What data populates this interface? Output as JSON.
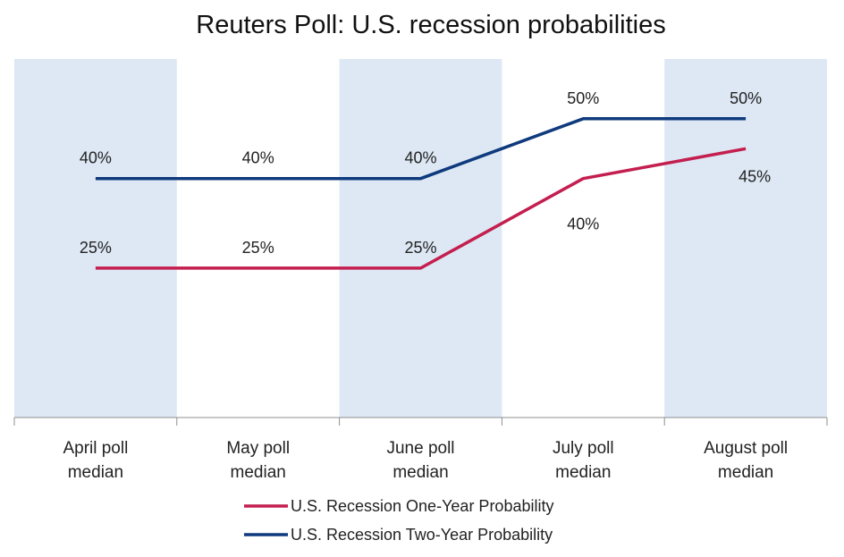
{
  "chart_data": {
    "type": "line",
    "title": "Reuters Poll: U.S. recession probabilities",
    "xlabel": "",
    "ylabel": "",
    "categories": [
      [
        "April poll",
        "median"
      ],
      [
        "May poll",
        "median"
      ],
      [
        "June poll",
        "median"
      ],
      [
        "July poll",
        "median"
      ],
      [
        "August poll",
        "median"
      ]
    ],
    "series": [
      {
        "name": "U.S. Recession One-Year Probability",
        "color": "#c41e4f",
        "values": [
          25,
          25,
          25,
          40,
          45
        ],
        "labels": [
          "25%",
          "25%",
          "25%",
          "40%",
          "45%"
        ]
      },
      {
        "name": "U.S. Recession Two-Year Probability",
        "color": "#0f3a7d",
        "values": [
          40,
          40,
          40,
          50,
          50
        ],
        "labels": [
          "40%",
          "40%",
          "40%",
          "50%",
          "50%"
        ]
      }
    ],
    "ylim": [
      0,
      60
    ],
    "grid": false,
    "y_axis_visible": false,
    "alternating_band_color": "#dde8f4",
    "axis_color": "#8f8f8f",
    "legend_position": "bottom"
  }
}
